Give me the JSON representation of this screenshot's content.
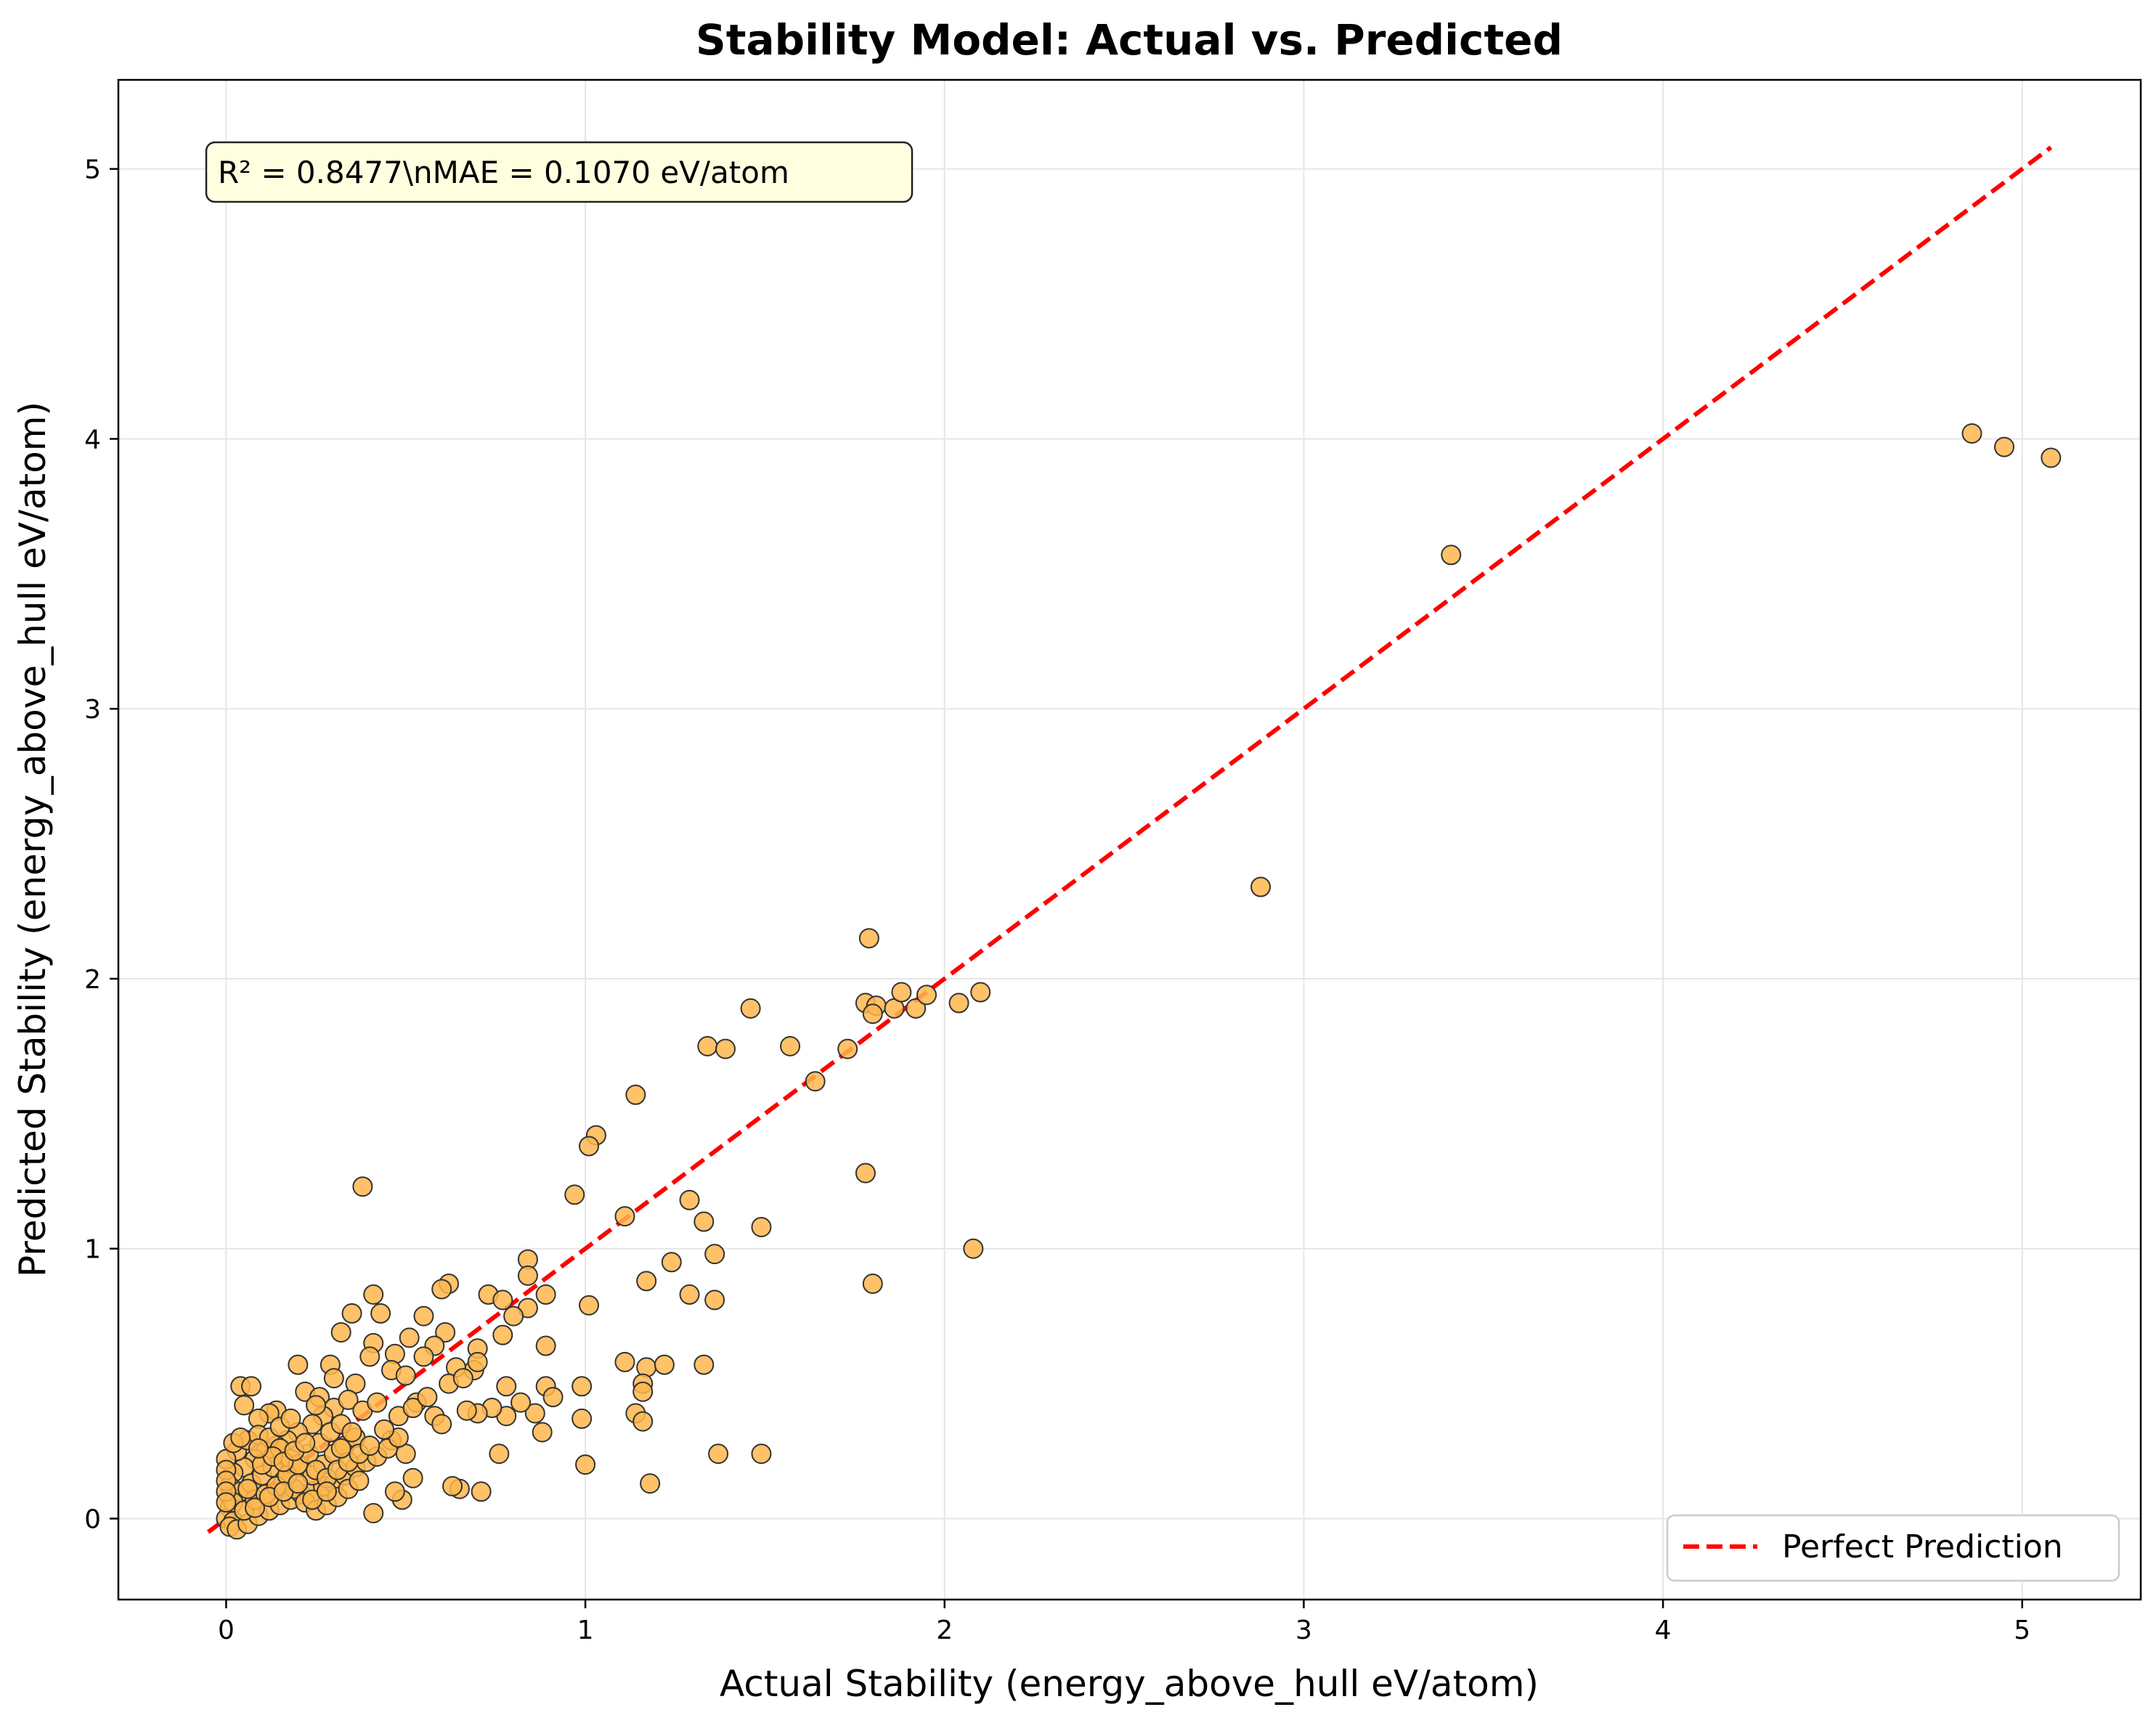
{
  "chart_data": {
    "type": "scatter",
    "title": "Stability Model: Actual vs. Predicted",
    "xlabel": "Actual Stability (energy_above_hull eV/atom)",
    "ylabel": "Predicted Stability (energy_above_hull eV/atom)",
    "xlim": [
      -0.3,
      5.33
    ],
    "ylim": [
      -0.3,
      5.33
    ],
    "x_ticks": [
      0,
      1,
      2,
      3,
      4,
      5
    ],
    "y_ticks": [
      0,
      1,
      2,
      3,
      4,
      5
    ],
    "x_tick_labels": [
      "0",
      "1",
      "2",
      "3",
      "4",
      "5"
    ],
    "y_tick_labels": [
      "0",
      "1",
      "2",
      "3",
      "4",
      "5"
    ],
    "grid": true,
    "annotation": "R² = 0.8477\\nMAE = 0.1070 eV/atom",
    "legend": {
      "position": "lower-right",
      "label": "Perfect Prediction"
    },
    "reference_line": {
      "x": [
        -0.05,
        5.08
      ],
      "y": [
        -0.05,
        5.08
      ],
      "color": "#ff0000",
      "style": "dashed"
    },
    "marker_color": "#ffb74d",
    "marker_edge": "#333333",
    "points": [
      [
        4.86,
        4.02
      ],
      [
        4.95,
        3.97
      ],
      [
        5.08,
        3.93
      ],
      [
        3.41,
        3.57
      ],
      [
        2.88,
        2.34
      ],
      [
        1.79,
        2.15
      ],
      [
        1.78,
        1.91
      ],
      [
        1.81,
        1.9
      ],
      [
        1.8,
        1.87
      ],
      [
        1.86,
        1.89
      ],
      [
        1.88,
        1.95
      ],
      [
        1.92,
        1.89
      ],
      [
        1.95,
        1.94
      ],
      [
        2.04,
        1.91
      ],
      [
        2.1,
        1.95
      ],
      [
        1.46,
        1.89
      ],
      [
        1.34,
        1.75
      ],
      [
        1.39,
        1.74
      ],
      [
        1.57,
        1.75
      ],
      [
        1.73,
        1.74
      ],
      [
        1.64,
        1.62
      ],
      [
        1.14,
        1.57
      ],
      [
        1.03,
        1.42
      ],
      [
        1.01,
        1.38
      ],
      [
        0.97,
        1.2
      ],
      [
        1.11,
        1.12
      ],
      [
        1.29,
        1.18
      ],
      [
        1.33,
        1.1
      ],
      [
        1.49,
        1.08
      ],
      [
        1.78,
        1.28
      ],
      [
        0.38,
        1.23
      ],
      [
        2.08,
        1.0
      ],
      [
        1.36,
        0.98
      ],
      [
        1.24,
        0.95
      ],
      [
        1.29,
        0.83
      ],
      [
        1.36,
        0.81
      ],
      [
        1.8,
        0.87
      ],
      [
        1.17,
        0.88
      ],
      [
        1.01,
        0.79
      ],
      [
        0.84,
        0.96
      ],
      [
        0.84,
        0.9
      ],
      [
        0.89,
        0.83
      ],
      [
        0.84,
        0.78
      ],
      [
        0.62,
        0.87
      ],
      [
        0.6,
        0.85
      ],
      [
        0.73,
        0.83
      ],
      [
        0.77,
        0.81
      ],
      [
        0.8,
        0.75
      ],
      [
        0.55,
        0.75
      ],
      [
        0.35,
        0.76
      ],
      [
        0.41,
        0.83
      ],
      [
        0.43,
        0.76
      ],
      [
        0.32,
        0.69
      ],
      [
        0.61,
        0.69
      ],
      [
        0.89,
        0.64
      ],
      [
        0.7,
        0.63
      ],
      [
        0.58,
        0.64
      ],
      [
        0.51,
        0.67
      ],
      [
        0.41,
        0.65
      ],
      [
        0.29,
        0.57
      ],
      [
        0.47,
        0.61
      ],
      [
        0.77,
        0.68
      ],
      [
        0.69,
        0.55
      ],
      [
        0.64,
        0.56
      ],
      [
        0.55,
        0.6
      ],
      [
        0.46,
        0.55
      ],
      [
        0.36,
        0.5
      ],
      [
        0.2,
        0.57
      ],
      [
        0.04,
        0.49
      ],
      [
        0.07,
        0.49
      ],
      [
        0.78,
        0.49
      ],
      [
        0.89,
        0.49
      ],
      [
        0.91,
        0.45
      ],
      [
        0.99,
        0.49
      ],
      [
        1.11,
        0.58
      ],
      [
        1.17,
        0.56
      ],
      [
        1.22,
        0.57
      ],
      [
        1.33,
        0.57
      ],
      [
        1.16,
        0.5
      ],
      [
        1.16,
        0.47
      ],
      [
        1.14,
        0.39
      ],
      [
        1.16,
        0.36
      ],
      [
        0.99,
        0.37
      ],
      [
        0.88,
        0.32
      ],
      [
        0.86,
        0.39
      ],
      [
        0.82,
        0.43
      ],
      [
        0.78,
        0.38
      ],
      [
        0.74,
        0.41
      ],
      [
        0.7,
        0.39
      ],
      [
        0.67,
        0.4
      ],
      [
        0.62,
        0.5
      ],
      [
        0.58,
        0.38
      ],
      [
        0.53,
        0.43
      ],
      [
        0.48,
        0.38
      ],
      [
        0.46,
        0.29
      ],
      [
        0.76,
        0.24
      ],
      [
        1.37,
        0.24
      ],
      [
        1.49,
        0.24
      ],
      [
        1.0,
        0.2
      ],
      [
        1.18,
        0.13
      ],
      [
        0.71,
        0.1
      ],
      [
        0.65,
        0.11
      ],
      [
        0.63,
        0.12
      ],
      [
        0.52,
        0.15
      ],
      [
        0.5,
        0.24
      ],
      [
        0.49,
        0.07
      ],
      [
        0.47,
        0.1
      ],
      [
        0.41,
        0.02
      ],
      [
        0.05,
        0.42
      ],
      [
        0.14,
        0.4
      ],
      [
        0.12,
        0.39
      ],
      [
        0.09,
        0.37
      ],
      [
        0.22,
        0.47
      ],
      [
        0.26,
        0.45
      ],
      [
        0.3,
        0.41
      ],
      [
        0.34,
        0.44
      ],
      [
        0.38,
        0.4
      ],
      [
        0.42,
        0.43
      ],
      [
        0.27,
        0.38
      ],
      [
        0.24,
        0.35
      ],
      [
        0.2,
        0.32
      ],
      [
        0.17,
        0.29
      ],
      [
        0.14,
        0.27
      ],
      [
        0.11,
        0.25
      ],
      [
        0.08,
        0.22
      ],
      [
        0.05,
        0.19
      ],
      [
        0.02,
        0.17
      ],
      [
        0.01,
        0.12
      ],
      [
        0.01,
        0.08
      ],
      [
        0.01,
        0.04
      ],
      [
        0.0,
        0.0
      ],
      [
        0.02,
        -0.01
      ],
      [
        0.01,
        -0.03
      ],
      [
        0.03,
        -0.04
      ],
      [
        0.06,
        -0.02
      ],
      [
        0.09,
        0.01
      ],
      [
        0.12,
        0.03
      ],
      [
        0.15,
        0.05
      ],
      [
        0.18,
        0.07
      ],
      [
        0.21,
        0.09
      ],
      [
        0.24,
        0.1
      ],
      [
        0.27,
        0.12
      ],
      [
        0.3,
        0.13
      ],
      [
        0.33,
        0.16
      ],
      [
        0.36,
        0.19
      ],
      [
        0.39,
        0.21
      ],
      [
        0.42,
        0.23
      ],
      [
        0.45,
        0.26
      ],
      [
        0.48,
        0.3
      ],
      [
        0.03,
        0.25
      ],
      [
        0.06,
        0.29
      ],
      [
        0.09,
        0.31
      ],
      [
        0.12,
        0.3
      ],
      [
        0.15,
        0.26
      ],
      [
        0.18,
        0.22
      ],
      [
        0.21,
        0.19
      ],
      [
        0.24,
        0.16
      ],
      [
        0.27,
        0.2
      ],
      [
        0.3,
        0.24
      ],
      [
        0.33,
        0.27
      ],
      [
        0.36,
        0.3
      ],
      [
        0.04,
        0.1
      ],
      [
        0.07,
        0.13
      ],
      [
        0.1,
        0.16
      ],
      [
        0.13,
        0.19
      ],
      [
        0.16,
        0.14
      ],
      [
        0.19,
        0.11
      ],
      [
        0.22,
        0.06
      ],
      [
        0.25,
        0.03
      ],
      [
        0.28,
        0.05
      ],
      [
        0.31,
        0.08
      ],
      [
        0.34,
        0.11
      ],
      [
        0.37,
        0.14
      ],
      [
        0.02,
        0.06
      ],
      [
        0.05,
        0.03
      ],
      [
        0.08,
        0.07
      ],
      [
        0.11,
        0.09
      ],
      [
        0.14,
        0.12
      ],
      [
        0.17,
        0.16
      ],
      [
        0.2,
        0.2
      ],
      [
        0.23,
        0.24
      ],
      [
        0.26,
        0.28
      ],
      [
        0.29,
        0.32
      ],
      [
        0.32,
        0.35
      ],
      [
        0.35,
        0.32
      ],
      [
        0.0,
        0.22
      ],
      [
        0.0,
        0.18
      ],
      [
        0.0,
        0.14
      ],
      [
        0.0,
        0.1
      ],
      [
        0.0,
        0.06
      ],
      [
        0.02,
        0.28
      ],
      [
        0.04,
        0.3
      ],
      [
        0.1,
        0.2
      ],
      [
        0.13,
        0.23
      ],
      [
        0.16,
        0.21
      ],
      [
        0.19,
        0.25
      ],
      [
        0.22,
        0.28
      ],
      [
        0.25,
        0.18
      ],
      [
        0.28,
        0.15
      ],
      [
        0.31,
        0.18
      ],
      [
        0.34,
        0.21
      ],
      [
        0.37,
        0.24
      ],
      [
        0.4,
        0.27
      ],
      [
        0.44,
        0.33
      ],
      [
        0.52,
        0.41
      ],
      [
        0.56,
        0.45
      ],
      [
        0.6,
        0.35
      ],
      [
        0.66,
        0.52
      ],
      [
        0.7,
        0.58
      ],
      [
        0.08,
        0.04
      ],
      [
        0.12,
        0.08
      ],
      [
        0.16,
        0.1
      ],
      [
        0.2,
        0.13
      ],
      [
        0.24,
        0.07
      ],
      [
        0.28,
        0.1
      ],
      [
        0.32,
        0.26
      ],
      [
        0.06,
        0.11
      ],
      [
        0.09,
        0.26
      ],
      [
        0.15,
        0.34
      ],
      [
        0.18,
        0.37
      ],
      [
        0.25,
        0.42
      ],
      [
        0.3,
        0.52
      ],
      [
        0.4,
        0.6
      ],
      [
        0.5,
        0.53
      ]
    ]
  }
}
